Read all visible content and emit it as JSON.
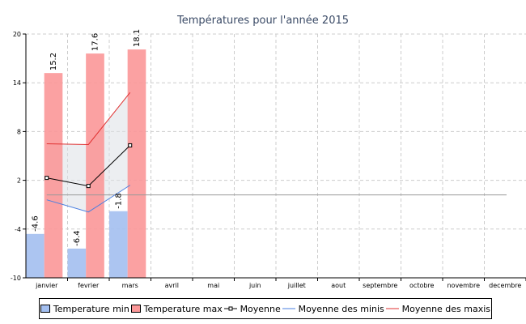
{
  "chart_data": {
    "type": "bar",
    "title": "Températures pour l'année 2015",
    "categories": [
      "janvier",
      "fevrier",
      "mars",
      "avril",
      "mai",
      "juin",
      "juillet",
      "aout",
      "septembre",
      "octobre",
      "novembre",
      "decembre"
    ],
    "ylim": [
      -10,
      20
    ],
    "yticks": [
      -10,
      -4,
      2,
      8,
      14,
      20
    ],
    "grid": true,
    "series": [
      {
        "name": "Temperature min",
        "kind": "bar",
        "color": "#a3bff0",
        "border": "#4a7fe0",
        "values": [
          -4.6,
          -6.4,
          -1.8,
          null,
          null,
          null,
          null,
          null,
          null,
          null,
          null,
          null
        ],
        "labels": [
          "-4.6",
          "-6.4",
          "-1.8"
        ]
      },
      {
        "name": "Temperature max",
        "kind": "bar",
        "color": "#fb9798",
        "border": "#e03030",
        "values": [
          15.2,
          17.6,
          18.1,
          null,
          null,
          null,
          null,
          null,
          null,
          null,
          null,
          null
        ],
        "labels": [
          "15.2",
          "17.6",
          "18.1"
        ]
      },
      {
        "name": "Moyenne",
        "kind": "line-marker",
        "color": "#000000",
        "values": [
          2.3,
          1.3,
          6.3,
          null,
          null,
          null,
          null,
          null,
          null,
          null,
          null,
          null
        ]
      },
      {
        "name": "Moyenne des minis",
        "kind": "line",
        "color": "#4a7fe0",
        "values": [
          -0.4,
          -1.9,
          1.4,
          null,
          null,
          null,
          null,
          null,
          null,
          null,
          null,
          null
        ]
      },
      {
        "name": "Moyenne des maxis",
        "kind": "line",
        "color": "#e03030",
        "values": [
          6.5,
          6.4,
          12.8,
          null,
          null,
          null,
          null,
          null,
          null,
          null,
          null,
          null
        ]
      }
    ],
    "reference_line": {
      "value": 0.2,
      "color": "#999999"
    },
    "legend_position": "bottom"
  }
}
